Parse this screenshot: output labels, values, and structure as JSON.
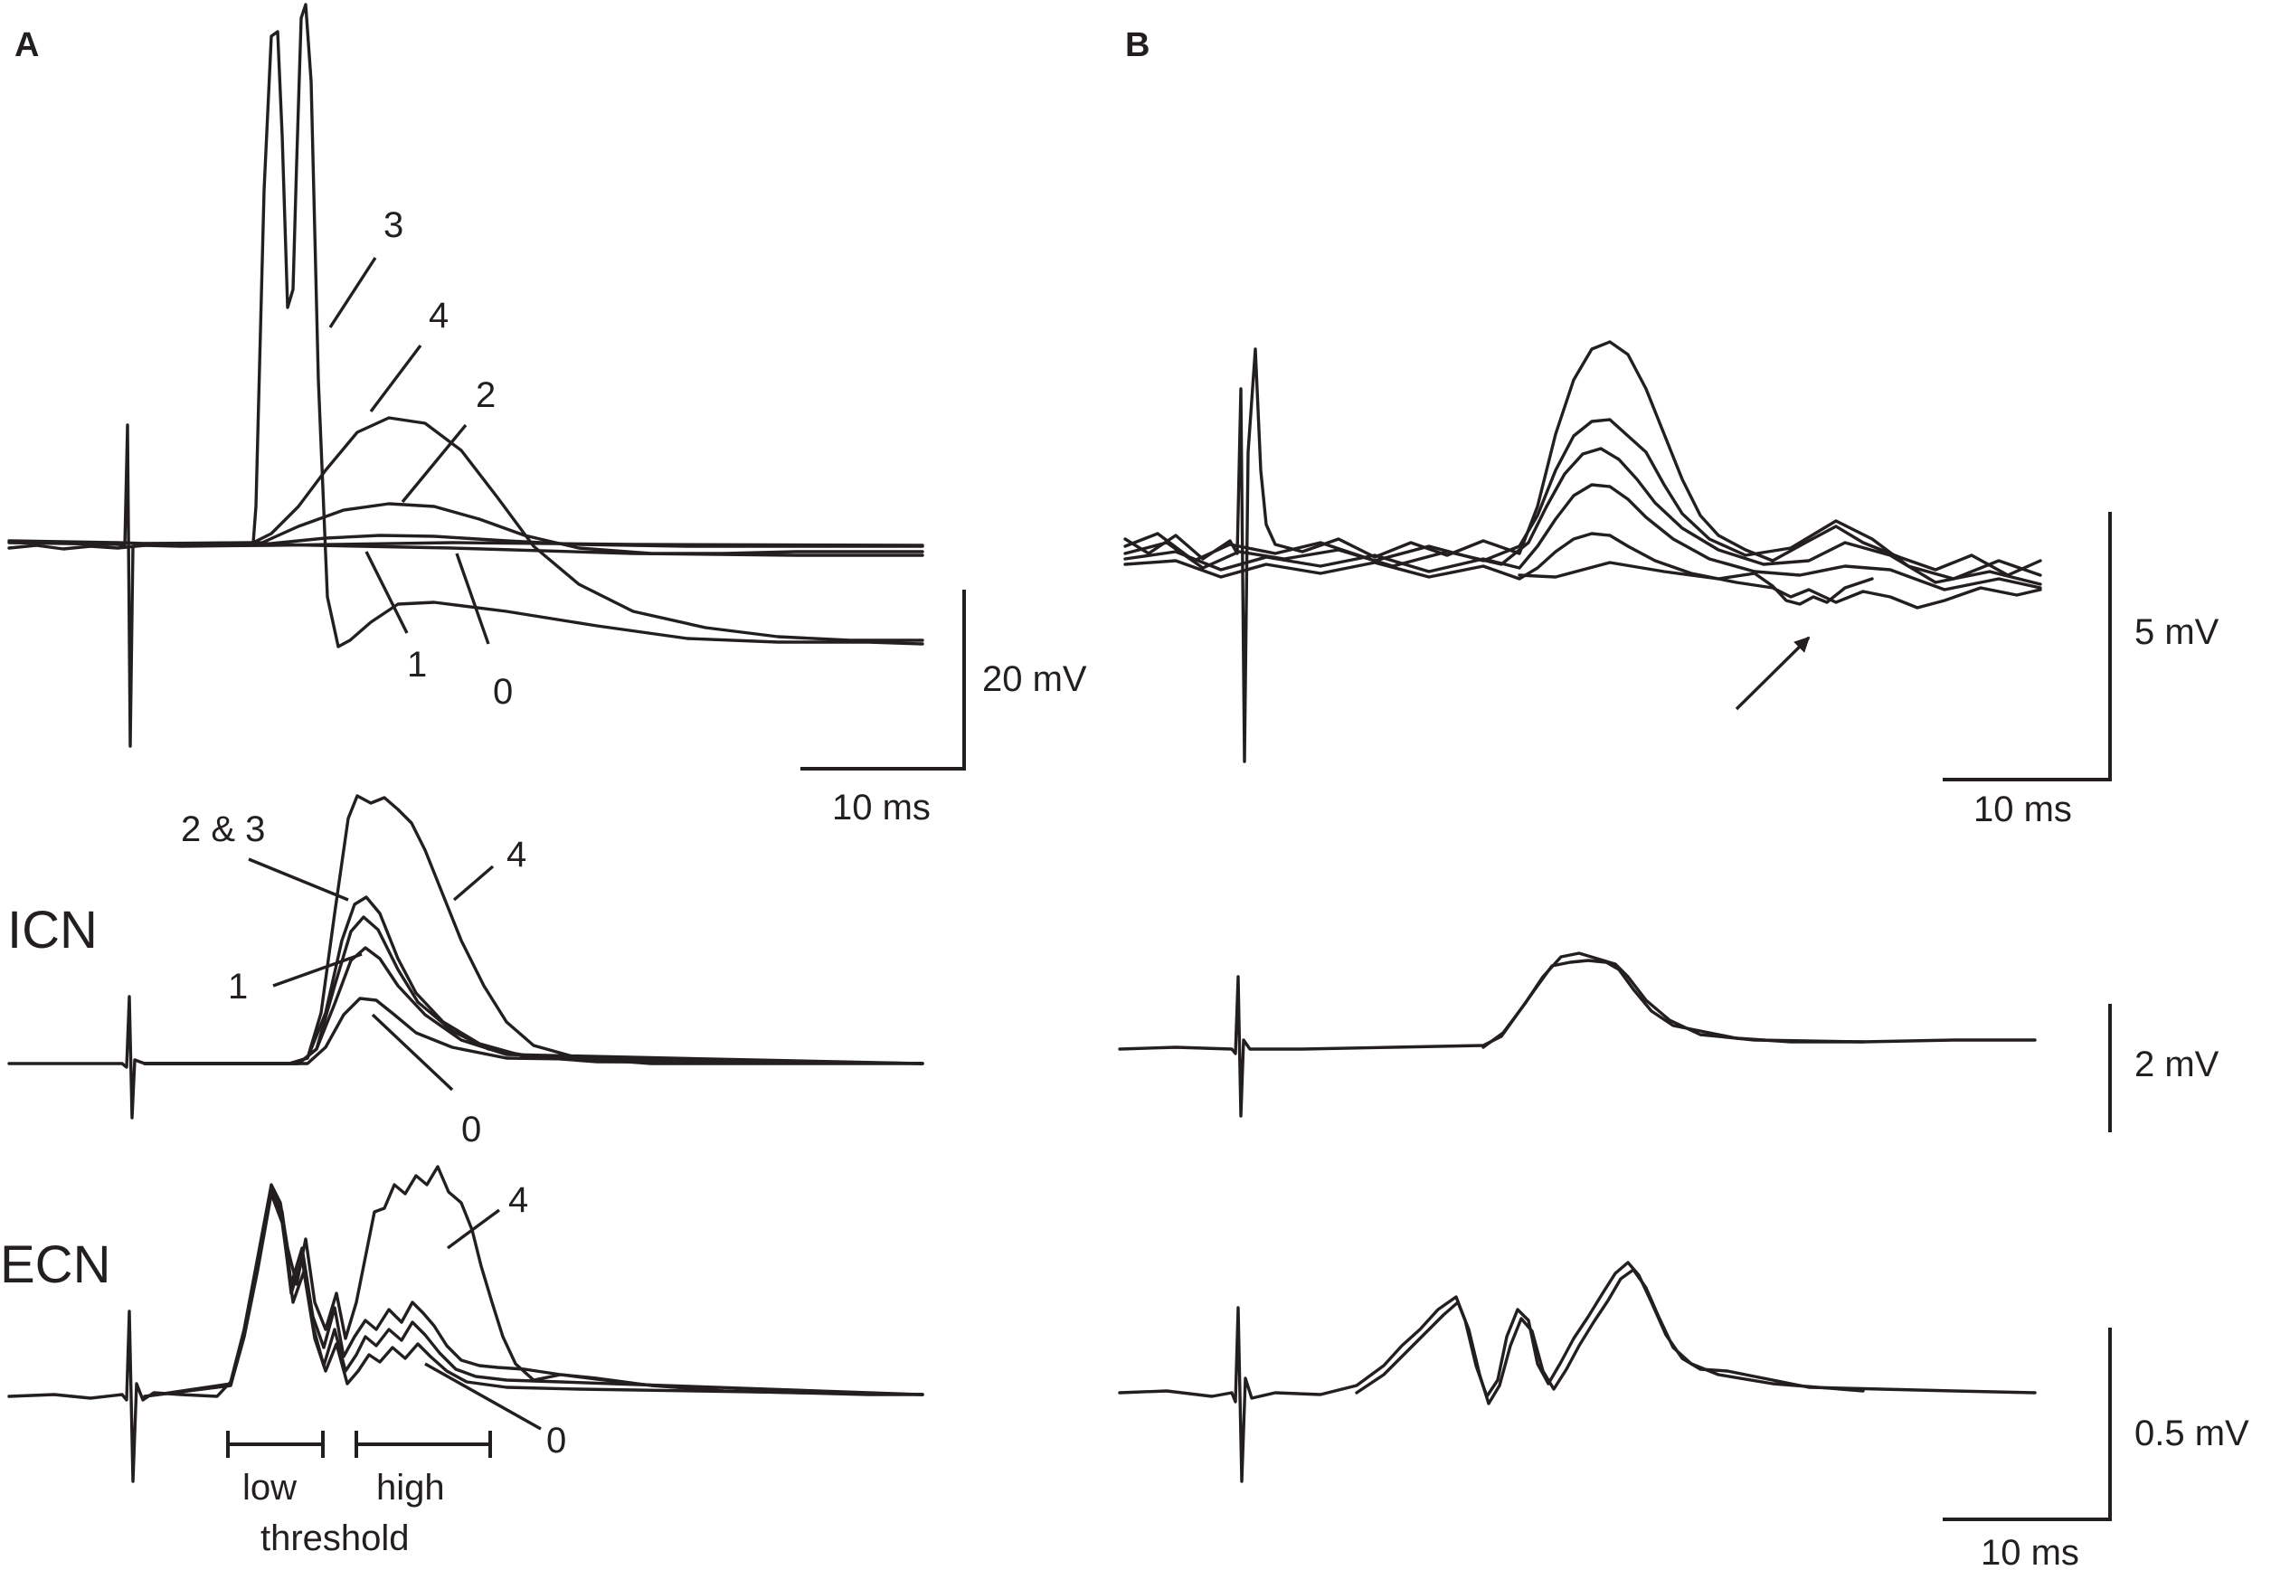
{
  "panels": {
    "a_letter": "A",
    "b_letter": "B"
  },
  "row_labels": {
    "icn": "ICN",
    "ecn": "ECN"
  },
  "panel_a": {
    "top_trace_labels": [
      "3",
      "4",
      "2",
      "1",
      "0"
    ],
    "icn_trace_labels": [
      "2 & 3",
      "4",
      "1",
      "0"
    ],
    "ecn_trace_labels": [
      "4",
      "0"
    ],
    "ecn_bracket_labels": {
      "low": "low",
      "high": "high",
      "threshold": "threshold"
    },
    "scale_bar": {
      "voltage": "20 mV",
      "time": "10 ms"
    }
  },
  "panel_b": {
    "top_scale": {
      "voltage": "5 mV",
      "time": "10 ms"
    },
    "middle_scale": {
      "voltage": "2 mV"
    },
    "bottom_scale": {
      "voltage": "0.5 mV",
      "time": "10 ms"
    },
    "annotation": "arrow-icon"
  },
  "colors": {
    "trace": "#231f20",
    "background": "#ffffff"
  }
}
